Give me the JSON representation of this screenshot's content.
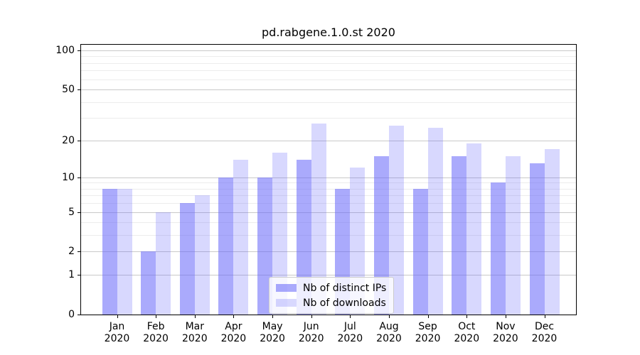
{
  "title": "pd.rabgene.1.0.st 2020",
  "legend": {
    "items": [
      {
        "label": "Nb of distinct IPs",
        "color": "#6464FA",
        "alpha": 0.55
      },
      {
        "label": "Nb of downloads",
        "color": "#6464FA",
        "alpha": 0.25
      }
    ]
  },
  "colors": {
    "bar_base": "#6464FA",
    "major_grid": "#c9c9c9",
    "minor_grid": "#ececec",
    "axis": "#000000"
  },
  "x_axis": {
    "months": [
      "Jan",
      "Feb",
      "Mar",
      "Apr",
      "May",
      "Jun",
      "Jul",
      "Aug",
      "Sep",
      "Oct",
      "Nov",
      "Dec"
    ],
    "year": "2020"
  },
  "y_axis": {
    "tick_labels": [
      "100",
      "50",
      "20",
      "10",
      "5",
      "2",
      "1",
      "0"
    ]
  },
  "chart_data": {
    "type": "bar",
    "title": "pd.rabgene.1.0.st 2020",
    "categories": [
      "Jan 2020",
      "Feb 2020",
      "Mar 2020",
      "Apr 2020",
      "May 2020",
      "Jun 2020",
      "Jul 2020",
      "Aug 2020",
      "Sep 2020",
      "Oct 2020",
      "Nov 2020",
      "Dec 2020"
    ],
    "series": [
      {
        "name": "Nb of distinct IPs",
        "values": [
          8,
          2,
          6,
          10,
          10,
          14,
          8,
          15,
          8,
          15,
          9,
          13
        ],
        "alpha": 0.55
      },
      {
        "name": "Nb of downloads",
        "values": [
          8,
          5,
          7,
          14,
          16,
          27,
          12,
          26,
          25,
          19,
          15,
          17
        ],
        "alpha": 0.25
      }
    ],
    "xlabel": "",
    "ylabel": "",
    "yscale": "log1p",
    "ylim": [
      0,
      100
    ],
    "yticks": [
      0,
      1,
      2,
      5,
      10,
      20,
      50,
      100
    ],
    "minor_yticks": [
      3,
      4,
      6,
      7,
      8,
      9,
      30,
      40,
      60,
      70,
      80,
      90
    ],
    "grid": true,
    "legend_position": "lower center"
  }
}
